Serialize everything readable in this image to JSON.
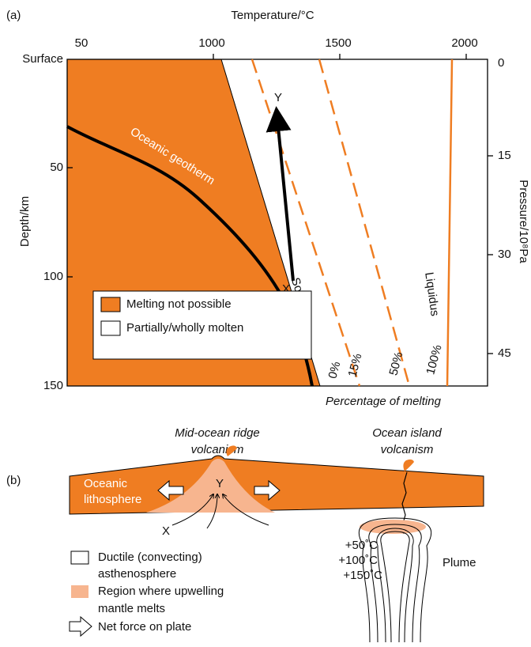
{
  "panel_a": {
    "label": "(a)",
    "x_axis_title": "Temperature/°C",
    "x_ticks": [
      "50",
      "1000",
      "1500",
      "2000"
    ],
    "y_axis_title": "Depth/km",
    "y_ticks": [
      "Surface",
      "50",
      "100",
      "150"
    ],
    "y2_axis_title": "Pressure/10⁸Pa",
    "y2_ticks": [
      "0",
      "15",
      "30",
      "45"
    ],
    "curve_labels": {
      "geotherm": "Oceanic geotherm",
      "solidus": "Solidus",
      "liquidus": "Liquidus"
    },
    "point_labels": [
      "X",
      "Y"
    ],
    "percent_labels": [
      "0%",
      "15%",
      "50%",
      "100%"
    ],
    "percent_title": "Percentage of melting",
    "legend": [
      "Melting not possible",
      "Partially/wholly molten"
    ]
  },
  "panel_b": {
    "label": "(b)",
    "ridge_title": [
      "Mid-ocean ridge",
      "volcanism"
    ],
    "island_title": [
      "Ocean island",
      "volcanism"
    ],
    "plate_label": [
      "Oceanic",
      "lithosphere"
    ],
    "point_labels": [
      "X",
      "Y"
    ],
    "isotherms": [
      "+50˚C",
      "+100˚C",
      "+150˚C"
    ],
    "plume": "Plume",
    "legend": [
      [
        "Ductile (convecting)",
        "asthenosphere"
      ],
      [
        "Region where upwelling",
        "mantle melts"
      ],
      [
        "Net force on plate"
      ]
    ]
  }
}
